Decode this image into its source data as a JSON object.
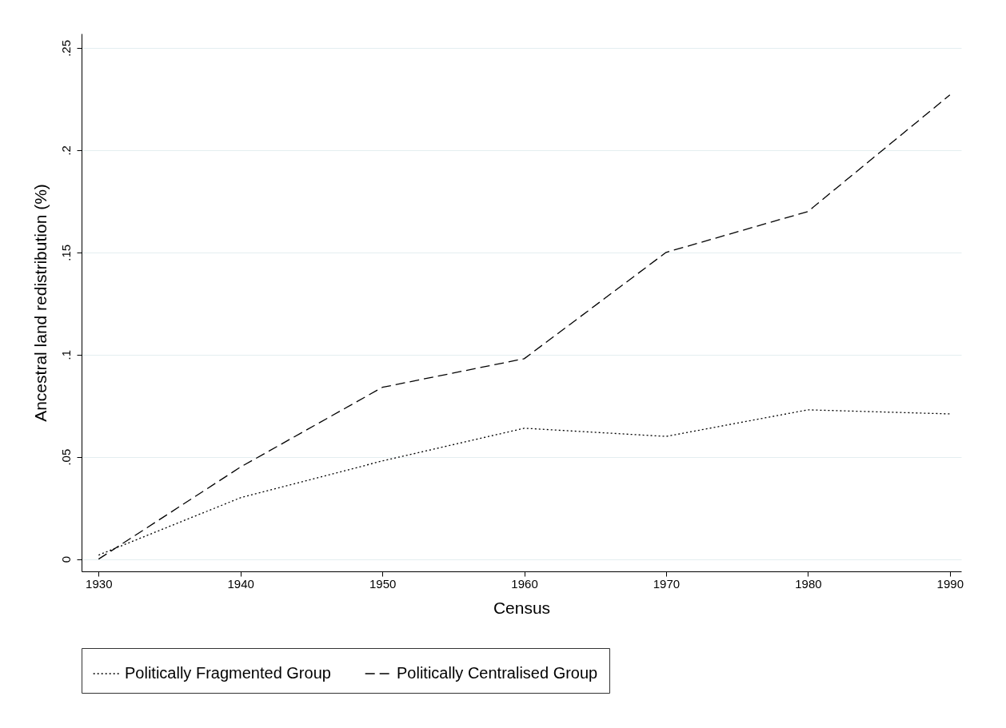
{
  "chart_data": {
    "type": "line",
    "xlabel": "Census",
    "ylabel": "Ancestral land redistribution (%)",
    "x": [
      1930,
      1940,
      1950,
      1960,
      1970,
      1980,
      1990
    ],
    "series": [
      {
        "name": "Politically Fragmented Group",
        "color": "#000000",
        "line_style": "dotted",
        "values": [
          0.002,
          0.03,
          0.048,
          0.064,
          0.06,
          0.073,
          0.071
        ]
      },
      {
        "name": "Politically Centralised Group",
        "color": "#000000",
        "line_style": "dashed",
        "values": [
          0.0,
          0.045,
          0.084,
          0.098,
          0.15,
          0.17,
          0.227
        ]
      }
    ],
    "xlim": [
      1928.8,
      1990.8
    ],
    "xticks": [
      1930,
      1940,
      1950,
      1960,
      1970,
      1980,
      1990
    ],
    "ylim": [
      -0.006,
      0.257
    ],
    "yticks": [
      {
        "value": 0,
        "label": "0"
      },
      {
        "value": 0.05,
        "label": ".05"
      },
      {
        "value": 0.1,
        "label": ".1"
      },
      {
        "value": 0.15,
        "label": ".15"
      },
      {
        "value": 0.2,
        "label": ".2"
      },
      {
        "value": 0.25,
        "label": ".25"
      }
    ],
    "grid": "y",
    "legend": "bottom",
    "marker": "none"
  }
}
